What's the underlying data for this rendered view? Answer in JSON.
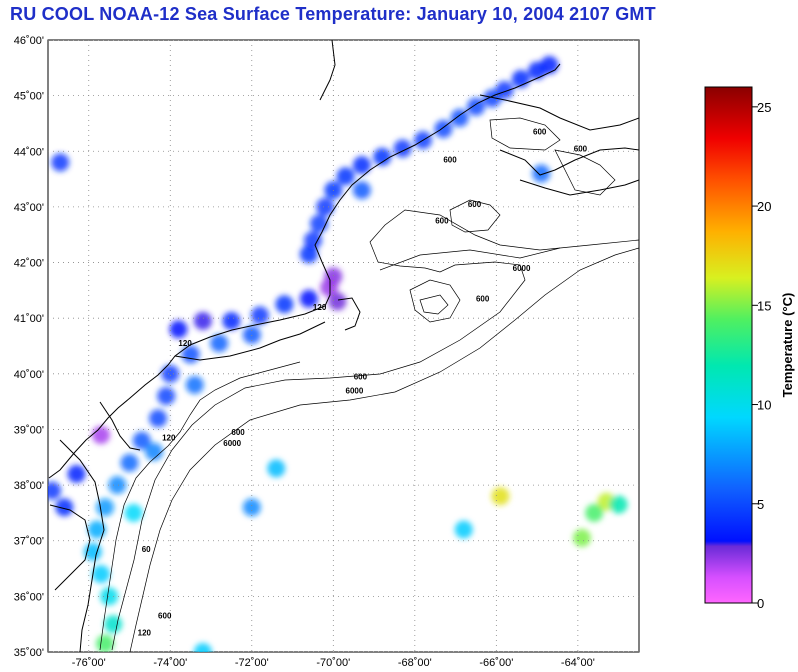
{
  "title": "RU COOL  NOAA-12  Sea Surface Temperature:  January 10, 2004 2107 GMT",
  "map": {
    "lat_labels": [
      "46˚00'",
      "45˚00'",
      "44˚00'",
      "43˚00'",
      "42˚00'",
      "41˚00'",
      "40˚00'",
      "39˚00'",
      "38˚00'",
      "37˚00'",
      "36˚00'",
      "35˚00'"
    ],
    "lon_labels": [
      "-76˚00'",
      "-74˚00'",
      "-72˚00'",
      "-70˚00'",
      "-68˚00'",
      "-66˚00'",
      "-64˚00'"
    ],
    "lat_range": [
      35,
      46
    ],
    "lon_range": [
      -77,
      -62.5
    ],
    "depth_contours": [
      "60",
      "120",
      "600",
      "6000"
    ],
    "depth_labels": [
      {
        "text": "600",
        "lon": -65.1,
        "lat": 44.3
      },
      {
        "text": "600",
        "lon": -66.7,
        "lat": 43.0
      },
      {
        "text": "600",
        "lon": -67.3,
        "lat": 43.8
      },
      {
        "text": "600",
        "lon": -67.5,
        "lat": 42.7
      },
      {
        "text": "600",
        "lon": -64.1,
        "lat": 44.0
      },
      {
        "text": "6000",
        "lon": -65.6,
        "lat": 41.85
      },
      {
        "text": "600",
        "lon": -66.5,
        "lat": 41.3
      },
      {
        "text": "120",
        "lon": -70.5,
        "lat": 41.15
      },
      {
        "text": "120",
        "lon": -73.8,
        "lat": 40.5
      },
      {
        "text": "600",
        "lon": -69.5,
        "lat": 39.9
      },
      {
        "text": "6000",
        "lon": -69.7,
        "lat": 39.65
      },
      {
        "text": "600",
        "lon": -72.5,
        "lat": 38.9
      },
      {
        "text": "6000",
        "lon": -72.7,
        "lat": 38.7
      },
      {
        "text": "120",
        "lon": -74.2,
        "lat": 38.8
      },
      {
        "text": "60",
        "lon": -74.7,
        "lat": 36.8
      },
      {
        "text": "600",
        "lon": -74.3,
        "lat": 35.6
      },
      {
        "text": "120",
        "lon": -74.8,
        "lat": 35.3
      }
    ],
    "sst_points": [
      {
        "lon": -64.7,
        "lat": 45.55,
        "t": 3.5
      },
      {
        "lon": -65.0,
        "lat": 45.45,
        "t": 3.8
      },
      {
        "lon": -65.4,
        "lat": 45.3,
        "t": 4.0
      },
      {
        "lon": -65.8,
        "lat": 45.1,
        "t": 4.5
      },
      {
        "lon": -66.1,
        "lat": 44.95,
        "t": 4.8
      },
      {
        "lon": -66.5,
        "lat": 44.8,
        "t": 5.0
      },
      {
        "lon": -66.9,
        "lat": 44.6,
        "t": 5.2
      },
      {
        "lon": -67.3,
        "lat": 44.4,
        "t": 5.0
      },
      {
        "lon": -67.8,
        "lat": 44.2,
        "t": 4.6
      },
      {
        "lon": -68.3,
        "lat": 44.05,
        "t": 4.4
      },
      {
        "lon": -68.8,
        "lat": 43.9,
        "t": 4.2
      },
      {
        "lon": -69.3,
        "lat": 43.75,
        "t": 4.0
      },
      {
        "lon": -69.7,
        "lat": 43.55,
        "t": 4.2
      },
      {
        "lon": -70.0,
        "lat": 43.3,
        "t": 4.3
      },
      {
        "lon": -70.2,
        "lat": 43.0,
        "t": 4.5
      },
      {
        "lon": -70.35,
        "lat": 42.7,
        "t": 4.6
      },
      {
        "lon": -70.5,
        "lat": 42.4,
        "t": 4.5
      },
      {
        "lon": -70.6,
        "lat": 42.15,
        "t": 4.2
      },
      {
        "lon": -70.0,
        "lat": 41.75,
        "t": 2.5
      },
      {
        "lon": -69.9,
        "lat": 41.3,
        "t": 2.8
      },
      {
        "lon": -70.6,
        "lat": 41.35,
        "t": 3.2
      },
      {
        "lon": -71.2,
        "lat": 41.25,
        "t": 4.2
      },
      {
        "lon": -71.8,
        "lat": 41.05,
        "t": 4.5
      },
      {
        "lon": -72.5,
        "lat": 40.95,
        "t": 3.8
      },
      {
        "lon": -73.2,
        "lat": 40.95,
        "t": 3.0
      },
      {
        "lon": -73.8,
        "lat": 40.8,
        "t": 3.2
      },
      {
        "lon": -72.0,
        "lat": 40.7,
        "t": 5.5
      },
      {
        "lon": -72.8,
        "lat": 40.55,
        "t": 5.8
      },
      {
        "lon": -73.5,
        "lat": 40.35,
        "t": 5.2
      },
      {
        "lon": -74.0,
        "lat": 40.0,
        "t": 4.6
      },
      {
        "lon": -74.1,
        "lat": 39.6,
        "t": 4.8
      },
      {
        "lon": -74.3,
        "lat": 39.2,
        "t": 5.0
      },
      {
        "lon": -74.7,
        "lat": 38.8,
        "t": 5.5
      },
      {
        "lon": -75.0,
        "lat": 38.4,
        "t": 6.0
      },
      {
        "lon": -75.3,
        "lat": 38.0,
        "t": 7.0
      },
      {
        "lon": -75.6,
        "lat": 37.6,
        "t": 7.5
      },
      {
        "lon": -75.8,
        "lat": 37.2,
        "t": 8.0
      },
      {
        "lon": -75.9,
        "lat": 36.8,
        "t": 8.5
      },
      {
        "lon": -75.7,
        "lat": 36.4,
        "t": 9.0
      },
      {
        "lon": -75.5,
        "lat": 36.0,
        "t": 10.0
      },
      {
        "lon": -75.4,
        "lat": 35.5,
        "t": 11.0
      },
      {
        "lon": -75.6,
        "lat": 35.15,
        "t": 14.0
      },
      {
        "lon": -73.4,
        "lat": 39.8,
        "t": 6.2
      },
      {
        "lon": -74.4,
        "lat": 38.6,
        "t": 6.8
      },
      {
        "lon": -74.9,
        "lat": 37.5,
        "t": 9.5
      },
      {
        "lon": -76.6,
        "lat": 37.6,
        "t": 4.0
      },
      {
        "lon": -76.3,
        "lat": 38.2,
        "t": 3.5
      },
      {
        "lon": -76.9,
        "lat": 37.9,
        "t": 4.5
      },
      {
        "lon": -75.7,
        "lat": 38.9,
        "t": 2.0
      },
      {
        "lon": -76.7,
        "lat": 43.8,
        "t": 4.5
      },
      {
        "lon": -69.3,
        "lat": 43.3,
        "t": 5.5
      },
      {
        "lon": -63.3,
        "lat": 37.7,
        "t": 16.0
      },
      {
        "lon": -63.6,
        "lat": 37.5,
        "t": 14.0
      },
      {
        "lon": -63.0,
        "lat": 37.65,
        "t": 12.0
      },
      {
        "lon": -65.9,
        "lat": 37.8,
        "t": 17.0
      },
      {
        "lon": -63.9,
        "lat": 37.05,
        "t": 15.0
      },
      {
        "lon": -66.8,
        "lat": 37.2,
        "t": 9.0
      },
      {
        "lon": -71.4,
        "lat": 38.3,
        "t": 8.5
      },
      {
        "lon": -72.0,
        "lat": 37.6,
        "t": 7.0
      },
      {
        "lon": -73.2,
        "lat": 35.0,
        "t": 9.0
      },
      {
        "lon": -70.1,
        "lat": 41.55,
        "t": 2.2
      },
      {
        "lon": -64.9,
        "lat": 43.6,
        "t": 6.0
      }
    ]
  },
  "colorbar": {
    "ticks": [
      "0",
      "5",
      "10",
      "15",
      "20",
      "25"
    ],
    "tick_values": [
      0,
      5,
      10,
      15,
      20,
      25
    ],
    "range": [
      0,
      26
    ],
    "label": "Temperature (°C)"
  }
}
